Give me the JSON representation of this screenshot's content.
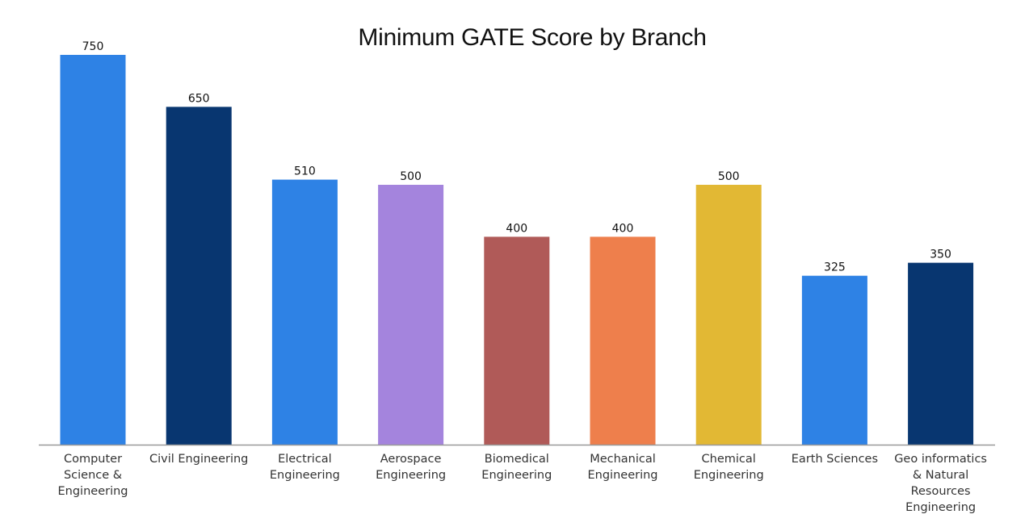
{
  "chart_data": {
    "type": "bar",
    "title": "Minimum GATE Score by Branch",
    "xlabel": "",
    "ylabel": "",
    "ylim": [
      0,
      750
    ],
    "grid": false,
    "legend": "none",
    "categories": [
      "Computer Science & Engineering",
      "Civil Engineering",
      "Electrical Engineering",
      "Aerospace Engineering",
      "Biomedical Engineering",
      "Mechanical Engineering",
      "Chemical Engineering",
      "Earth Sciences",
      "Geo informatics & Natural Resources Engineering"
    ],
    "category_lines": [
      [
        "Computer",
        "Science &",
        "Engineering"
      ],
      [
        "Civil Engineering"
      ],
      [
        "Electrical",
        "Engineering"
      ],
      [
        "Aerospace",
        "Engineering"
      ],
      [
        "Biomedical",
        "Engineering"
      ],
      [
        "Mechanical",
        "Engineering"
      ],
      [
        "Chemical",
        "Engineering"
      ],
      [
        "Earth Sciences"
      ],
      [
        "Geo informatics",
        "& Natural",
        "Resources",
        "Engineering"
      ]
    ],
    "values": [
      750,
      650,
      510,
      500,
      400,
      400,
      500,
      325,
      350
    ],
    "value_labels": [
      "750",
      "650",
      "510",
      "500",
      "400",
      "400",
      "500",
      "325",
      "350"
    ],
    "colors": [
      "#2e82e5",
      "#083670",
      "#2e82e5",
      "#a484dd",
      "#b05a58",
      "#ee7f4c",
      "#e2b834",
      "#2e82e5",
      "#083670"
    ],
    "axis_color": "#999999"
  }
}
